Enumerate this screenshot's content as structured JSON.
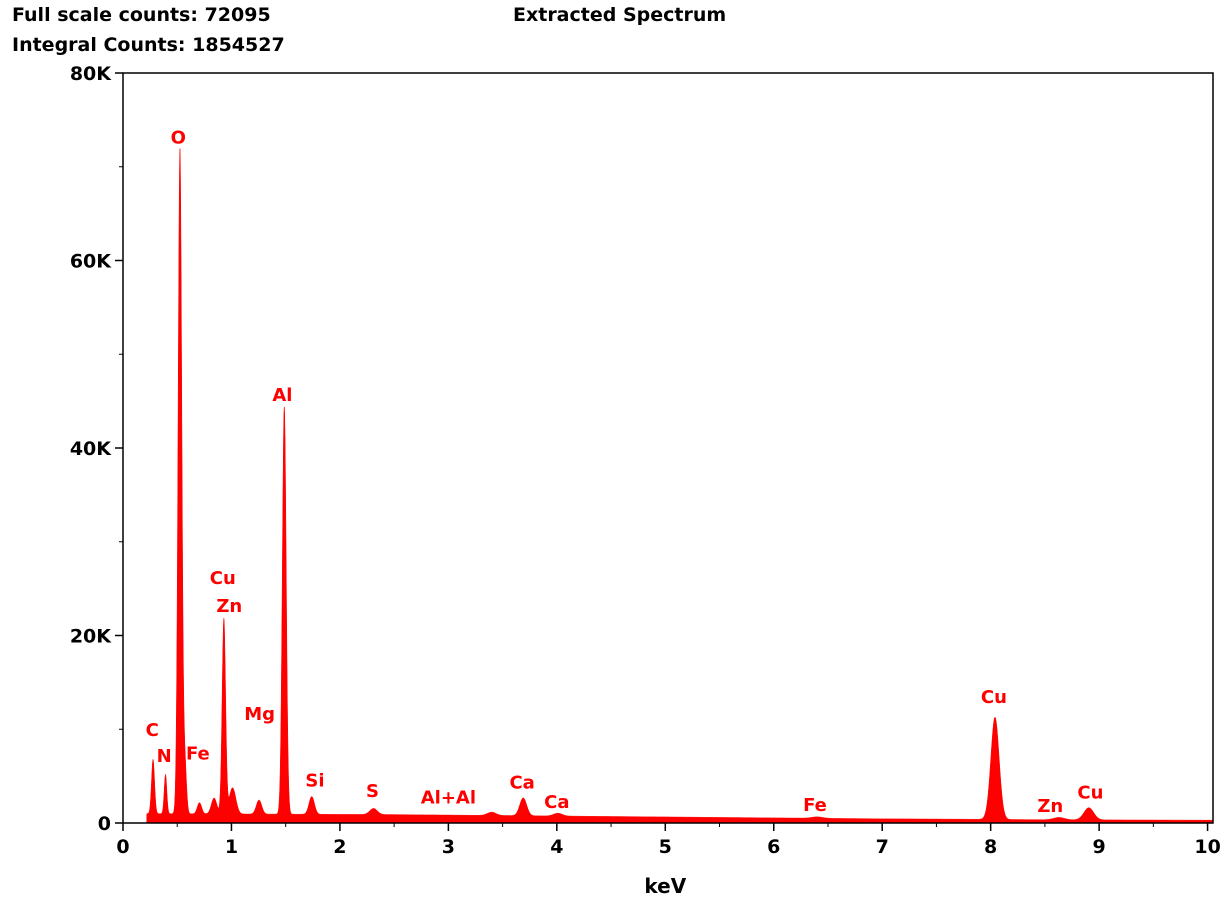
{
  "header": {
    "full_scale": "Full scale counts: 72095",
    "integral": "Integral Counts: 1854527"
  },
  "chart_data": {
    "type": "area",
    "title": "Extracted Spectrum",
    "xlabel": "keV",
    "ylabel": "",
    "xlim": [
      0,
      10.05
    ],
    "ylim": [
      0,
      80000
    ],
    "x_ticks": [
      0,
      1,
      2,
      3,
      4,
      5,
      6,
      7,
      8,
      9,
      10
    ],
    "y_ticks": [
      {
        "value": 0,
        "label": "0"
      },
      {
        "value": 20000,
        "label": "20K"
      },
      {
        "value": 40000,
        "label": "40K"
      },
      {
        "value": 60000,
        "label": "60K"
      },
      {
        "value": 80000,
        "label": "80K"
      }
    ],
    "grid": false,
    "series_color": "#ff0000",
    "baseline": [
      [
        0.22,
        1000
      ],
      [
        2.5,
        900
      ],
      [
        4.5,
        700
      ],
      [
        7.0,
        450
      ],
      [
        7.9,
        400
      ],
      [
        8.5,
        350
      ],
      [
        10.05,
        300
      ]
    ],
    "peaks": [
      {
        "x": 0.277,
        "counts": 5800,
        "sigma": 0.014
      },
      {
        "x": 0.392,
        "counts": 4200,
        "sigma": 0.012
      },
      {
        "x": 0.525,
        "counts": 71000,
        "sigma": 0.017
      },
      {
        "x": 0.57,
        "counts": 5500,
        "sigma": 0.015
      },
      {
        "x": 0.705,
        "counts": 1200,
        "sigma": 0.02
      },
      {
        "x": 0.84,
        "counts": 1700,
        "sigma": 0.025
      },
      {
        "x": 0.93,
        "counts": 20800,
        "sigma": 0.016
      },
      {
        "x": 1.01,
        "counts": 2800,
        "sigma": 0.03
      },
      {
        "x": 1.254,
        "counts": 1500,
        "sigma": 0.025
      },
      {
        "x": 1.487,
        "counts": 43500,
        "sigma": 0.018
      },
      {
        "x": 1.74,
        "counts": 1900,
        "sigma": 0.025
      },
      {
        "x": 2.31,
        "counts": 650,
        "sigma": 0.035
      },
      {
        "x": 3.4,
        "counts": 350,
        "sigma": 0.04
      },
      {
        "x": 3.69,
        "counts": 1900,
        "sigma": 0.032
      },
      {
        "x": 4.01,
        "counts": 300,
        "sigma": 0.04
      },
      {
        "x": 6.4,
        "counts": 150,
        "sigma": 0.05
      },
      {
        "x": 8.04,
        "counts": 10900,
        "sigma": 0.038
      },
      {
        "x": 8.63,
        "counts": 250,
        "sigma": 0.05
      },
      {
        "x": 8.905,
        "counts": 1300,
        "sigma": 0.045
      }
    ],
    "peak_labels": [
      {
        "text": "O",
        "x": 0.51,
        "y": 72500
      },
      {
        "text": "Al",
        "x": 1.47,
        "y": 45000
      },
      {
        "text": "Cu",
        "x": 0.92,
        "y": 25500
      },
      {
        "text": "Zn",
        "x": 0.98,
        "y": 22500
      },
      {
        "text": "Mg",
        "x": 1.26,
        "y": 11000
      },
      {
        "text": "C",
        "x": 0.27,
        "y": 9300
      },
      {
        "text": "N",
        "x": 0.38,
        "y": 6500
      },
      {
        "text": "Fe",
        "x": 0.69,
        "y": 6800
      },
      {
        "text": "Si",
        "x": 1.77,
        "y": 3900
      },
      {
        "text": "S",
        "x": 2.3,
        "y": 2800
      },
      {
        "text": "Al+Al",
        "x": 3.0,
        "y": 2100
      },
      {
        "text": "Ca",
        "x": 3.68,
        "y": 3700
      },
      {
        "text": "Ca",
        "x": 4.0,
        "y": 1600
      },
      {
        "text": "Fe",
        "x": 6.38,
        "y": 1300
      },
      {
        "text": "Cu",
        "x": 8.03,
        "y": 12800
      },
      {
        "text": "Zn",
        "x": 8.55,
        "y": 1200
      },
      {
        "text": "Cu",
        "x": 8.92,
        "y": 2600
      }
    ]
  }
}
